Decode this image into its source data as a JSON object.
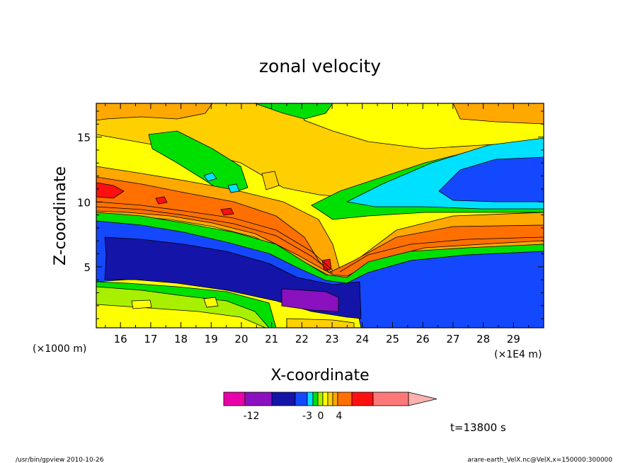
{
  "chart_data": {
    "type": "heatmap",
    "title": "zonal velocity",
    "xlabel": "X-coordinate",
    "ylabel": "Z-coordinate",
    "x_unit_left": "(×1000 m)",
    "x_unit_right": "(×1E4 m)",
    "x_ticks": [
      "16",
      "17",
      "18",
      "19",
      "20",
      "21",
      "22",
      "23",
      "24",
      "25",
      "26",
      "27",
      "28",
      "29"
    ],
    "y_ticks": [
      "5",
      "10",
      "15"
    ],
    "xlim": [
      15.2,
      30.0
    ],
    "ylim": [
      0.3,
      17.6
    ],
    "colorbar": {
      "colors": [
        "#e800a8",
        "#8a10c0",
        "#1414a8",
        "#1448ff",
        "#00e0ff",
        "#00e000",
        "#a8f000",
        "#ffff00",
        "#ffd000",
        "#ffa800",
        "#ff7000",
        "#ff1010",
        "#ff7878",
        "#ffb0b0"
      ],
      "tick_labels": [
        "-12",
        "-3",
        "0",
        "4"
      ]
    },
    "time_label": "t=13800 s",
    "footer_left": "/usr/bin/gpview   2010-10-26",
    "footer_right": "arare-earth_VelX.nc@VelX,x=150000:300000"
  }
}
